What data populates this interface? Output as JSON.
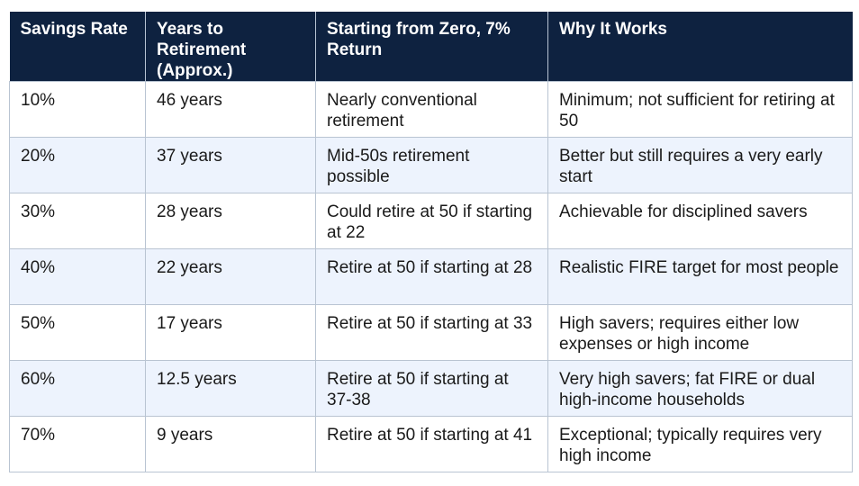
{
  "table": {
    "headers": [
      "Savings Rate",
      "Years to Retirement (Approx.)",
      "Starting from Zero, 7% Return",
      "Why It Works"
    ],
    "rows": [
      [
        "10%",
        "46 years",
        "Nearly conventional retirement",
        "Minimum; not sufficient for retiring at 50"
      ],
      [
        "20%",
        "37 years",
        "Mid-50s retirement possible",
        "Better but still requires a very early start"
      ],
      [
        "30%",
        "28 years",
        "Could retire at 50 if starting at 22",
        "Achievable for disciplined savers"
      ],
      [
        "40%",
        "22 years",
        "Retire at 50 if starting at 28",
        "Realistic FIRE target for most people"
      ],
      [
        "50%",
        "17 years",
        "Retire at 50 if starting at 33",
        "High savers; requires either low expenses or high income"
      ],
      [
        "60%",
        "12.5 years",
        "Retire at 50 if starting at 37-38",
        "Very high savers; fat FIRE or dual high-income households"
      ],
      [
        "70%",
        "9 years",
        "Retire at 50 if starting at 41",
        "Exceptional; typically requires very high income"
      ]
    ]
  },
  "colors": {
    "header_bg": "#0e2240",
    "header_text": "#ffffff",
    "row_alt_bg": "#edf3fd",
    "border": "#b9c4d2"
  }
}
